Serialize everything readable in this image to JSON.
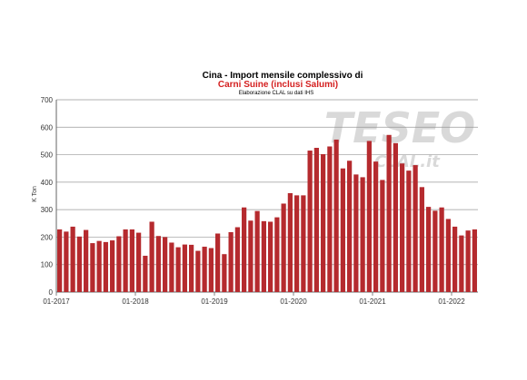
{
  "chart_data": {
    "type": "bar",
    "title_line1": "Cina - Import mensile complessivo di",
    "title_line2": "Carni Suine (inclusi Salumi)",
    "subtitle": "Elaborazione CLAL su dati IHS",
    "ylabel": "K Ton",
    "xlabel": "",
    "ylim": [
      0,
      700
    ],
    "yticks": [
      0,
      100,
      200,
      300,
      400,
      500,
      600,
      700
    ],
    "xtick_labels": [
      {
        "index": 0,
        "label": "01-2017"
      },
      {
        "index": 12,
        "label": "01-2018"
      },
      {
        "index": 24,
        "label": "01-2019"
      },
      {
        "index": 36,
        "label": "01-2020"
      },
      {
        "index": 48,
        "label": "01-2021"
      },
      {
        "index": 60,
        "label": "01-2022"
      }
    ],
    "grid": true,
    "bar_color": "#b52a2e",
    "watermark": {
      "main": "TESEO",
      "sub": "CLAL.it"
    },
    "values": [
      228,
      220,
      238,
      202,
      226,
      178,
      186,
      182,
      188,
      203,
      228,
      228,
      216,
      132,
      256,
      204,
      200,
      180,
      163,
      173,
      172,
      150,
      165,
      160,
      213,
      138,
      218,
      236,
      308,
      260,
      295,
      258,
      256,
      272,
      322,
      360,
      352,
      352,
      515,
      525,
      502,
      530,
      555,
      450,
      478,
      428,
      418,
      550,
      475,
      408,
      572,
      542,
      468,
      442,
      462,
      382,
      310,
      296,
      308,
      266,
      238,
      206,
      224,
      228
    ]
  }
}
